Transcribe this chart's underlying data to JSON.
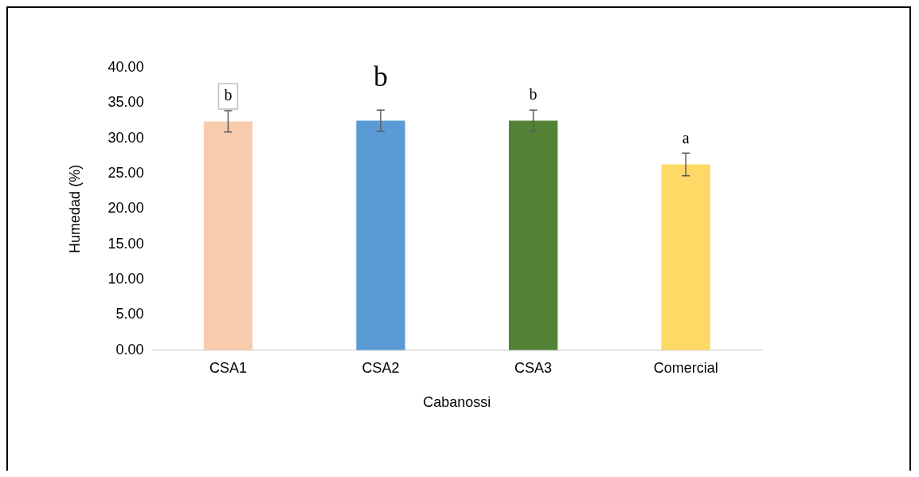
{
  "chart_data": {
    "type": "bar",
    "xlabel": "Cabanossi",
    "ylabel": "Humedad (%)",
    "categories": [
      "CSA1",
      "CSA2",
      "CSA3",
      "Comercial"
    ],
    "values": [
      32.4,
      32.5,
      32.5,
      26.3
    ],
    "colors": [
      "#f8cbad",
      "#5b9bd5",
      "#548235",
      "#ffd966"
    ],
    "errors": [
      1.5,
      1.5,
      1.5,
      1.6
    ],
    "ylim": [
      0,
      40
    ],
    "yticks": [
      {
        "value": 0,
        "label": "0.00"
      },
      {
        "value": 5,
        "label": "5.00"
      },
      {
        "value": 10,
        "label": "10.00"
      },
      {
        "value": 15,
        "label": "15.00"
      },
      {
        "value": 20,
        "label": "20.00"
      },
      {
        "value": 25,
        "label": "25.00"
      },
      {
        "value": 30,
        "label": "30.00"
      },
      {
        "value": 35,
        "label": "35.00"
      },
      {
        "value": 40,
        "label": "40.00"
      }
    ],
    "grid": false,
    "legend": false,
    "annotations": [
      "b",
      "b",
      "b",
      "a"
    ]
  }
}
